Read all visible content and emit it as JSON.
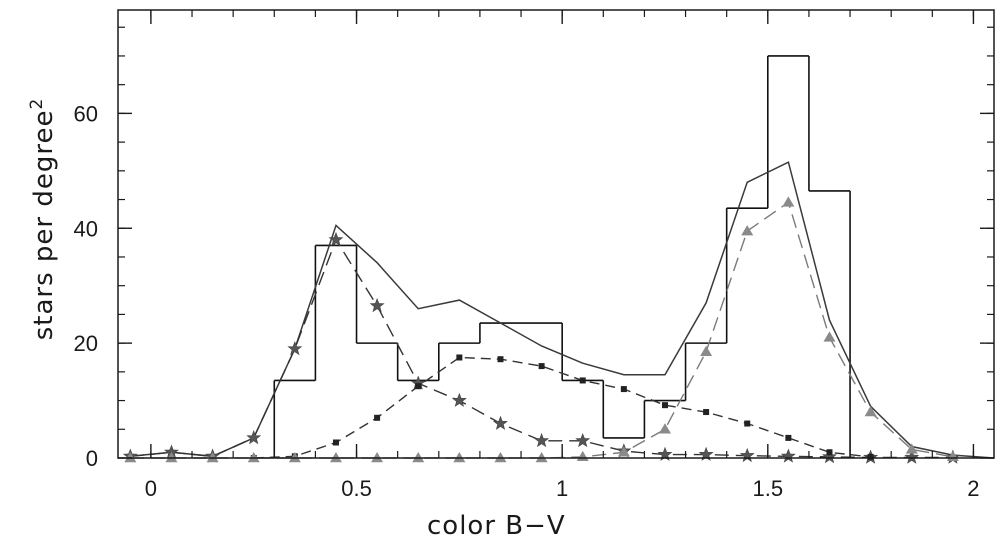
{
  "chart_data": {
    "type": "line",
    "xlabel": "color B−V",
    "ylabel": "stars per degree",
    "ylabel_sup": "2",
    "xlim": [
      -0.08,
      2.05
    ],
    "ylim": [
      0,
      78
    ],
    "xticks": [
      {
        "v": 0,
        "label": "0"
      },
      {
        "v": 0.5,
        "label": "0.5"
      },
      {
        "v": 1,
        "label": "1"
      },
      {
        "v": 1.5,
        "label": "1.5"
      },
      {
        "v": 2,
        "label": "2"
      }
    ],
    "yticks": [
      {
        "v": 0,
        "label": "0"
      },
      {
        "v": 20,
        "label": "20"
      },
      {
        "v": 40,
        "label": "40"
      },
      {
        "v": 60,
        "label": "60"
      }
    ],
    "x_minor_step": 0.1,
    "y_minor_step": 5,
    "histogram": {
      "edges": [
        0.3,
        0.4,
        0.5,
        0.6,
        0.7,
        0.8,
        1.0,
        1.1,
        1.2,
        1.3,
        1.4,
        1.5,
        1.6,
        1.7
      ],
      "values": [
        13.5,
        37,
        20,
        13.5,
        20,
        23.5,
        13.5,
        3.5,
        10,
        20,
        43.5,
        70,
        46.5
      ]
    },
    "series": [
      {
        "style": "solid",
        "x": [
          -0.05,
          0.05,
          0.15,
          0.25,
          0.35,
          0.45,
          0.55,
          0.65,
          0.75,
          0.85,
          0.95,
          1.05,
          1.15,
          1.25,
          1.35,
          1.45,
          1.55,
          1.65,
          1.75,
          1.85,
          1.95,
          2.05
        ],
        "y": [
          0.3,
          1.0,
          0.3,
          3.5,
          19,
          40.5,
          34,
          26,
          27.5,
          23.5,
          19.5,
          16.5,
          14.5,
          14.5,
          27,
          48,
          51.5,
          24,
          9,
          2,
          0.5,
          0
        ]
      },
      {
        "style": "dashed",
        "marker": "star",
        "x": [
          -0.05,
          0.05,
          0.15,
          0.25,
          0.35,
          0.45,
          0.55,
          0.65,
          0.75,
          0.85,
          0.95,
          1.05,
          1.15,
          1.25,
          1.35,
          1.45,
          1.55,
          1.65,
          1.75,
          1.85,
          1.95
        ],
        "y": [
          0.3,
          1.0,
          0.3,
          3.5,
          19,
          38,
          26.5,
          13,
          10,
          6,
          3,
          3,
          1.2,
          0.6,
          0.6,
          0.4,
          0.3,
          0.2,
          0.1,
          0.1,
          0.1
        ]
      },
      {
        "style": "dashed",
        "marker": "square",
        "x": [
          0.25,
          0.35,
          0.45,
          0.55,
          0.65,
          0.75,
          0.85,
          0.95,
          1.05,
          1.15,
          1.25,
          1.35,
          1.45,
          1.55,
          1.65,
          1.75
        ],
        "y": [
          0,
          0.3,
          2.7,
          7,
          12.5,
          17.5,
          17.2,
          16,
          13.5,
          12,
          9.2,
          8,
          6,
          3.5,
          1,
          0.2
        ]
      },
      {
        "style": "dashed",
        "marker": "triangle",
        "x": [
          -0.05,
          0.05,
          0.15,
          0.25,
          0.35,
          0.45,
          0.55,
          0.65,
          0.75,
          0.85,
          0.95,
          1.05,
          1.15,
          1.25,
          1.35,
          1.45,
          1.55,
          1.65,
          1.75,
          1.85,
          1.95
        ],
        "y": [
          0,
          0,
          0,
          0,
          0,
          0,
          0,
          0,
          0,
          0,
          0,
          0.2,
          1,
          5,
          18.5,
          39.5,
          44.5,
          21,
          8,
          1.5,
          0.2
        ]
      }
    ]
  }
}
